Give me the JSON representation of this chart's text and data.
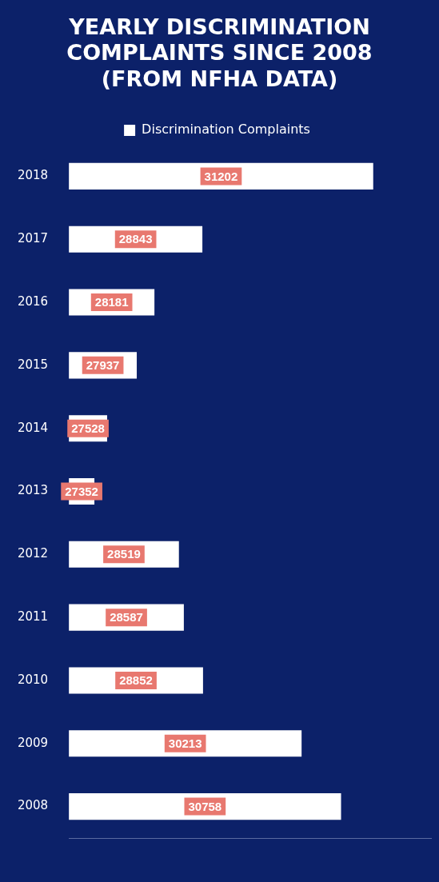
{
  "chart_data": {
    "type": "bar",
    "orientation": "horizontal",
    "title": "YEARLY DISCRIMINATION COMPLAINTS SINCE 2008 (FROM NFHA DATA)",
    "categories": [
      "2018",
      "2017",
      "2016",
      "2015",
      "2014",
      "2013",
      "2012",
      "2011",
      "2010",
      "2009",
      "2008"
    ],
    "series": [
      {
        "name": "Discrimination Complaints",
        "color": "#ffffff",
        "values": [
          31202,
          28843,
          28181,
          27937,
          27528,
          27352,
          28519,
          28587,
          28852,
          30213,
          30758
        ]
      }
    ],
    "xlim": [
      27000,
      32000
    ],
    "tick_labels": "y",
    "grid": false,
    "legend": "top",
    "data_labels": true
  }
}
